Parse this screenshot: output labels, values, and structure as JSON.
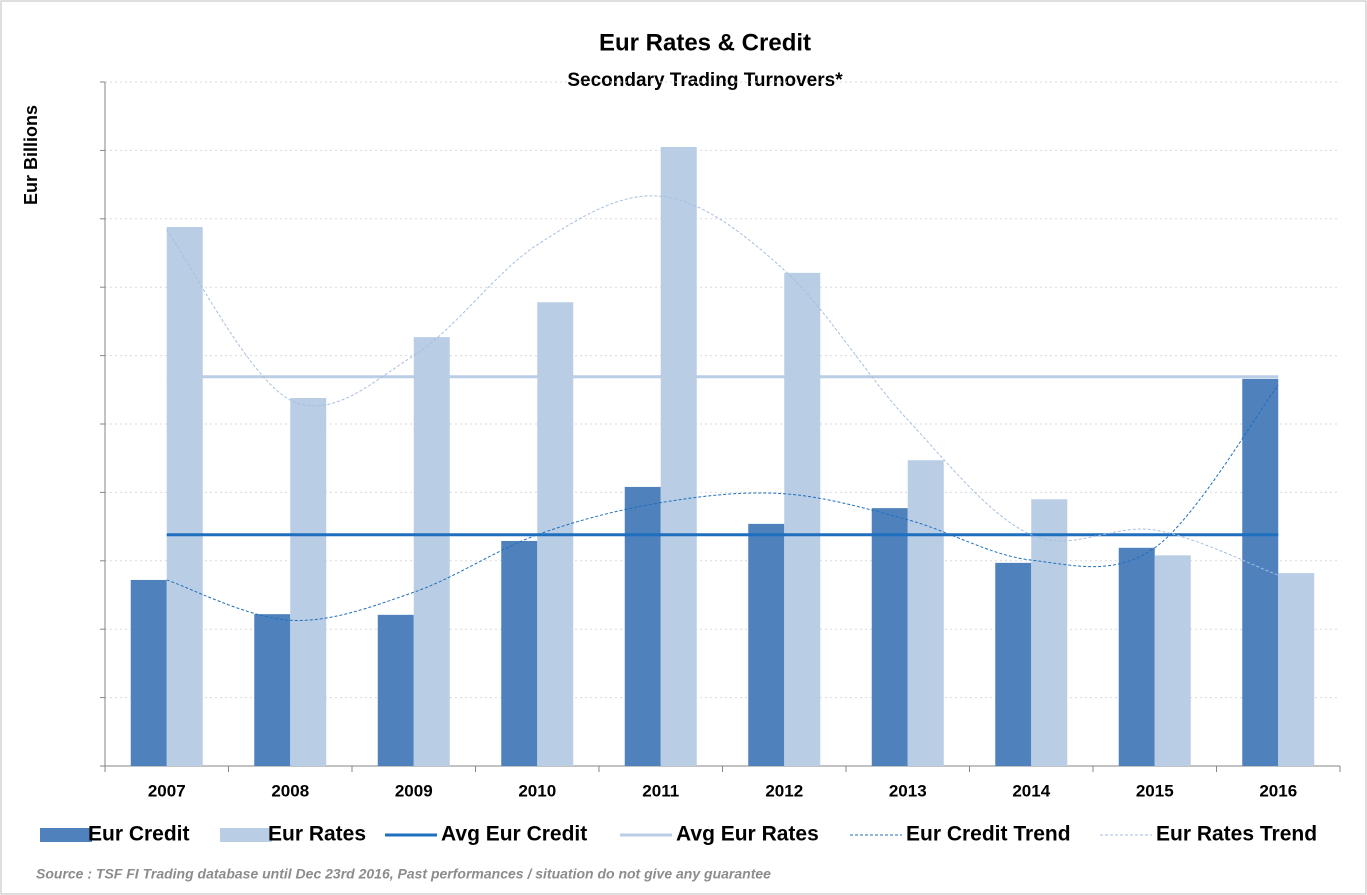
{
  "chart_data": {
    "type": "bar",
    "title": "Eur Rates & Credit",
    "subtitle": "Secondary Trading Turnovers*",
    "y_label": "Eur Billions",
    "source": "Source : TSF FI Trading database until Dec 23rd  2016, Past performances / situation do not give any guarantee",
    "categories": [
      "2007",
      "2008",
      "2009",
      "2010",
      "2011",
      "2012",
      "2013",
      "2014",
      "2015",
      "2016"
    ],
    "series": [
      {
        "name": "Eur Credit",
        "kind": "bar",
        "color": "#4f81bd",
        "values": [
          2.72,
          2.22,
          2.21,
          3.29,
          4.08,
          3.54,
          3.77,
          2.97,
          3.19,
          5.66
        ]
      },
      {
        "name": "Eur Rates",
        "kind": "bar",
        "color": "#b9cde5",
        "values": [
          7.88,
          5.38,
          6.27,
          6.78,
          9.05,
          7.21,
          4.47,
          3.9,
          3.08,
          2.82
        ]
      },
      {
        "name": "Avg Eur Credit",
        "kind": "line",
        "color": "#1f6fbf",
        "values": [
          3.38,
          3.38,
          3.38,
          3.38,
          3.38,
          3.38,
          3.38,
          3.38,
          3.38,
          3.38
        ]
      },
      {
        "name": "Avg Eur Rates",
        "kind": "line",
        "color": "#b9cde5",
        "values": [
          5.69,
          5.69,
          5.69,
          5.69,
          5.69,
          5.69,
          5.69,
          5.69,
          5.69,
          5.69
        ]
      },
      {
        "name": "Eur Credit Trend",
        "kind": "trend",
        "color": "#1f6fbf",
        "values": [
          2.72,
          2.13,
          2.54,
          3.38,
          3.85,
          3.98,
          3.6,
          3.01,
          3.19,
          5.57
        ]
      },
      {
        "name": "Eur Rates Trend",
        "kind": "trend",
        "color": "#a6bfdd",
        "values": [
          7.84,
          5.35,
          6.0,
          7.62,
          8.33,
          7.25,
          5.06,
          3.38,
          3.45,
          2.79
        ]
      }
    ],
    "ylim": [
      0,
      10
    ],
    "yticks": [
      0,
      1,
      2,
      3,
      4,
      5,
      6,
      7,
      8,
      9,
      10
    ],
    "grid": true
  }
}
